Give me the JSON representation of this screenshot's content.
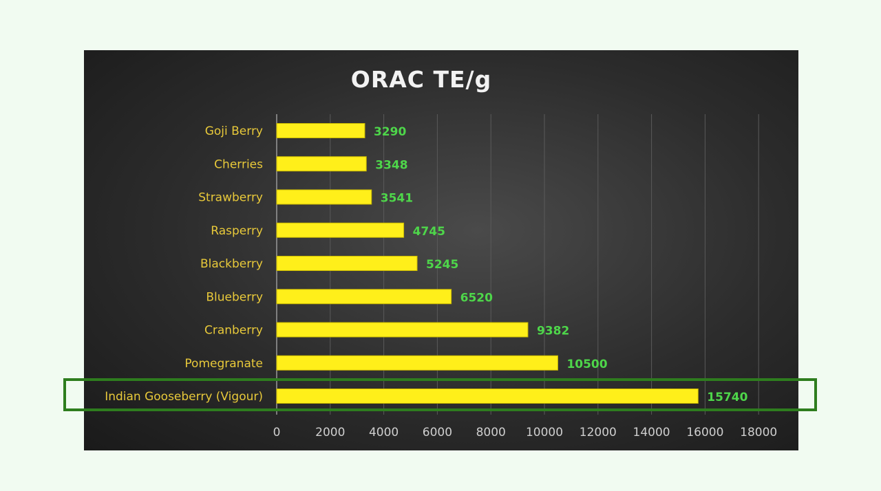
{
  "chart_data": {
    "type": "bar",
    "orientation": "horizontal",
    "title": "ORAC TE/g",
    "categories": [
      "Goji Berry",
      "Cherries",
      "Strawberry",
      "Rasperry",
      "Blackberry",
      "Blueberry",
      "Cranberry",
      "Pomegranate",
      "Indian Gooseberry (Vigour)"
    ],
    "values": [
      3290,
      3348,
      3541,
      4745,
      5245,
      6520,
      9382,
      10500,
      15740
    ],
    "x_ticks": [
      "0",
      "2000",
      "4000",
      "6000",
      "8000",
      "10000",
      "12000",
      "14000",
      "16000",
      "18000"
    ],
    "xlim": [
      0,
      18000
    ],
    "grid": true,
    "highlighted_category": "Indian Gooseberry (Vigour)",
    "colors": {
      "bar": "#ffef1a",
      "category_label": "#e8c93a",
      "value_label": "#4ed64a",
      "title": "#f2f2f2",
      "highlight_border": "#2e7d1e",
      "panel_background": "#2c2c2c"
    }
  }
}
